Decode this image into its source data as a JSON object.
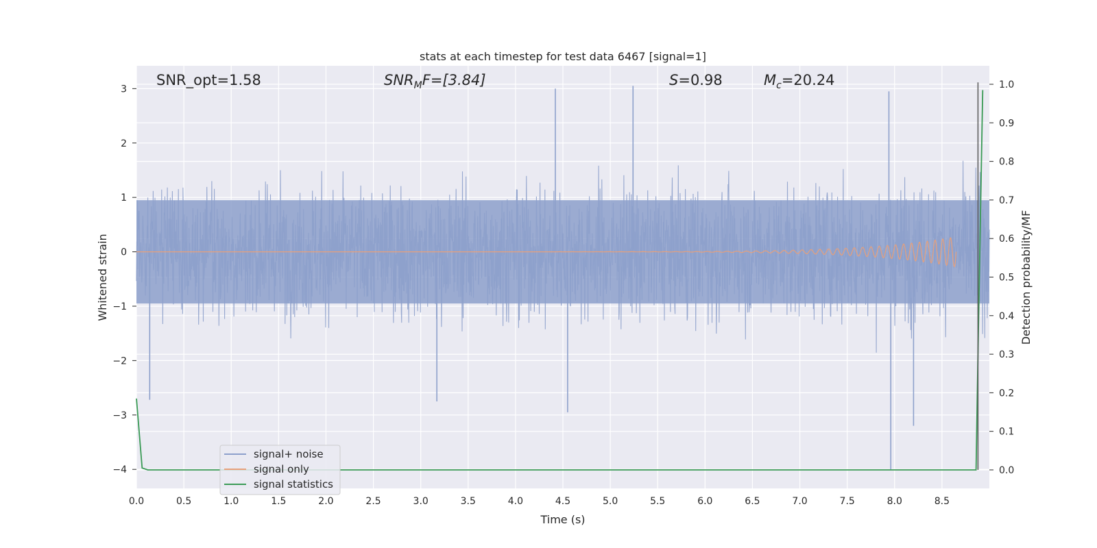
{
  "chart_data": {
    "type": "line",
    "title": "stats at each timestep for test data 6467 [signal=1]",
    "xlabel": "Time (s)",
    "ylabel_left": "Whitened strain",
    "ylabel_right": "Detection probability/MF",
    "xlim": [
      0.0,
      9.0
    ],
    "ylim_left": [
      -4.35,
      3.42
    ],
    "ylim_right": [
      -0.048,
      1.048
    ],
    "x_ticks": [
      "0.0",
      "0.5",
      "1.0",
      "1.5",
      "2.0",
      "2.5",
      "3.0",
      "3.5",
      "4.0",
      "4.5",
      "5.0",
      "5.5",
      "6.0",
      "6.5",
      "7.0",
      "7.5",
      "8.0",
      "8.5"
    ],
    "x_tick_values": [
      0.0,
      0.5,
      1.0,
      1.5,
      2.0,
      2.5,
      3.0,
      3.5,
      4.0,
      4.5,
      5.0,
      5.5,
      6.0,
      6.5,
      7.0,
      7.5,
      8.0,
      8.5
    ],
    "y_left_ticks": [
      "−4",
      "−3",
      "−2",
      "−1",
      "0",
      "1",
      "2",
      "3"
    ],
    "y_left_tick_values": [
      -4,
      -3,
      -2,
      -1,
      0,
      1,
      2,
      3
    ],
    "y_right_ticks": [
      "0.0",
      "0.1",
      "0.2",
      "0.3",
      "0.4",
      "0.5",
      "0.6",
      "0.7",
      "0.8",
      "0.9",
      "1.0"
    ],
    "y_right_tick_values": [
      0.0,
      0.1,
      0.2,
      0.3,
      0.4,
      0.5,
      0.6,
      0.7,
      0.8,
      0.9,
      1.0
    ],
    "grid": true,
    "legend_placement": "lower-left",
    "annotations": {
      "snr_opt": "SNR_opt=1.58",
      "snr_mf_base": "SNR",
      "snr_mf_sub": "M",
      "snr_mf_rest": "F=[3.84]",
      "s_italic": "S",
      "s_rest": "=0.98",
      "mc_base": "M",
      "mc_sub": "c",
      "mc_rest": "=20.24"
    },
    "series": [
      {
        "name": "signal+ noise",
        "axis": "left",
        "color": "#8da0cb",
        "description_envelope": {
          "x_range": [
            0.0,
            9.0
          ],
          "typical_band": [
            -0.95,
            0.95
          ],
          "peak_range": [
            -4.0,
            3.05
          ],
          "notable_spikes": [
            {
              "x": 4.42,
              "y": 3.0
            },
            {
              "x": 5.24,
              "y": 3.05
            },
            {
              "x": 7.94,
              "y": 2.95
            },
            {
              "x": 7.96,
              "y": -4.0
            },
            {
              "x": 8.2,
              "y": -3.2
            },
            {
              "x": 4.55,
              "y": -2.95
            },
            {
              "x": 3.17,
              "y": -2.75
            },
            {
              "x": 0.14,
              "y": -2.72
            }
          ]
        }
      },
      {
        "name": "signal only",
        "axis": "left",
        "color": "#e8a07a",
        "chirp": {
          "x_start": 0.0,
          "x_end": 8.65,
          "max_amplitude": 0.28,
          "baseline": 0.0
        }
      },
      {
        "name": "signal statistics",
        "axis": "right",
        "color": "#3a9a55",
        "x": [
          0.0,
          0.06,
          0.12,
          1.0,
          2.0,
          3.0,
          4.0,
          5.0,
          6.0,
          7.0,
          8.0,
          8.86,
          8.88,
          8.93
        ],
        "values": [
          0.185,
          0.005,
          0.0,
          0.0,
          0.0,
          0.0,
          0.0,
          0.0,
          0.0,
          0.0,
          0.0,
          0.0,
          0.3,
          0.985
        ]
      },
      {
        "name": "",
        "axis": "right",
        "color": "#555555",
        "marker_line": {
          "x": 8.88,
          "y_from": 0.0,
          "y_to": 1.005
        }
      }
    ]
  }
}
